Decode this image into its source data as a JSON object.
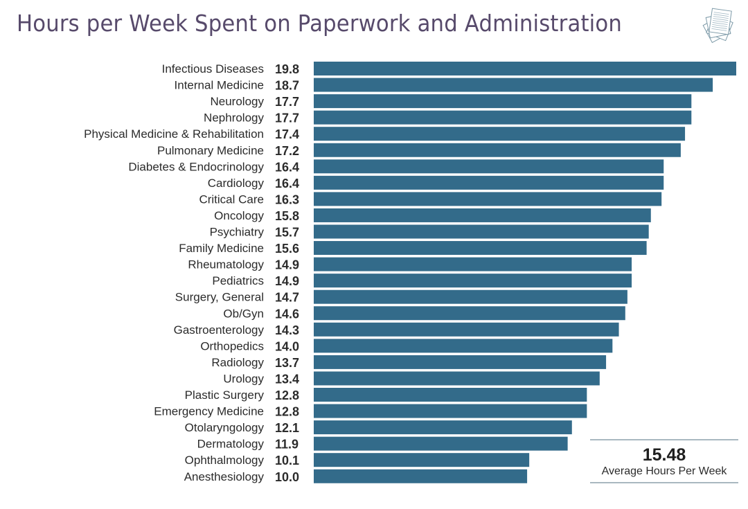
{
  "title": "Hours per Week Spent on Paperwork and Administration",
  "icon": "paperwork-stack-icon",
  "colors": {
    "bar": "#336b8a",
    "title": "#574a6b",
    "text": "#2b2b2b",
    "rule": "#a9b8c0"
  },
  "summary": {
    "value": "15.48",
    "label": "Average Hours Per Week"
  },
  "chart_data": {
    "type": "bar",
    "orientation": "horizontal",
    "title": "Hours per Week Spent on Paperwork and Administration",
    "xlabel": "",
    "ylabel": "",
    "xlim": [
      0,
      19.8
    ],
    "grid": false,
    "legend": "none",
    "categories": [
      "Infectious Diseases",
      "Internal Medicine",
      "Neurology",
      "Nephrology",
      "Physical Medicine & Rehabilitation",
      "Pulmonary Medicine",
      "Diabetes & Endocrinology",
      "Cardiology",
      "Critical Care",
      "Oncology",
      "Psychiatry",
      "Family Medicine",
      "Rheumatology",
      "Pediatrics",
      "Surgery, General",
      "Ob/Gyn",
      "Gastroenterology",
      "Orthopedics",
      "Radiology",
      "Urology",
      "Plastic Surgery",
      "Emergency Medicine",
      "Otolaryngology",
      "Dermatology",
      "Ophthalmology",
      "Anesthesiology"
    ],
    "values": [
      19.8,
      18.7,
      17.7,
      17.7,
      17.4,
      17.2,
      16.4,
      16.4,
      16.3,
      15.8,
      15.7,
      15.6,
      14.9,
      14.9,
      14.7,
      14.6,
      14.3,
      14.0,
      13.7,
      13.4,
      12.8,
      12.8,
      12.1,
      11.9,
      10.1,
      10.0
    ],
    "value_labels": [
      "19.8",
      "18.7",
      "17.7",
      "17.7",
      "17.4",
      "17.2",
      "16.4",
      "16.4",
      "16.3",
      "15.8",
      "15.7",
      "15.6",
      "14.9",
      "14.9",
      "14.7",
      "14.6",
      "14.3",
      "14.0",
      "13.7",
      "13.4",
      "12.8",
      "12.8",
      "12.1",
      "11.9",
      "10.1",
      "10.0"
    ],
    "annotation": {
      "value": "15.48",
      "text": "Average Hours Per Week"
    }
  }
}
